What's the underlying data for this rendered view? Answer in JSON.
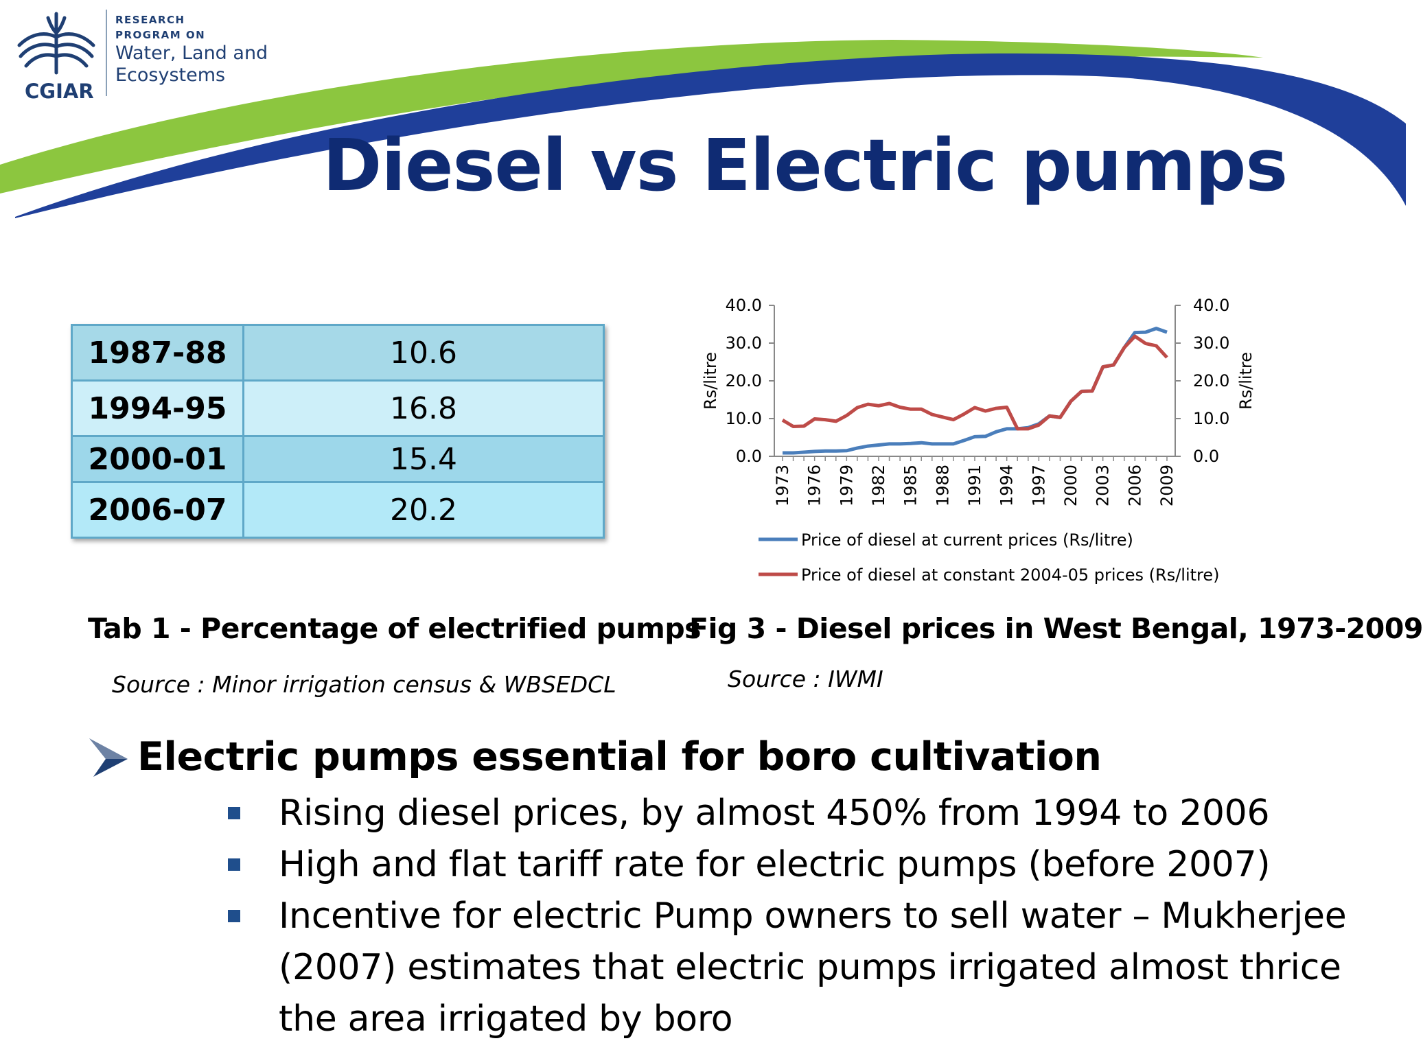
{
  "logo": {
    "org": "CGIAR",
    "line1": "RESEARCH",
    "line2": "PROGRAM ON",
    "line3": "Water, Land and",
    "line4": "Ecosystems",
    "icon": "cgiar-wheat-icon"
  },
  "colors": {
    "title": "#0f2b73",
    "swoosh_green": "#8cc63f",
    "swoosh_blue": "#1f3f9a",
    "series_current": "#4a7ebb",
    "series_constant": "#be4b48",
    "table_border": "#5fa8c8",
    "bullet_square": "#1f4e8c"
  },
  "title": "Diesel vs Electric pumps",
  "table": {
    "rows": [
      {
        "year": "1987-88",
        "value": "10.6"
      },
      {
        "year": "1994-95",
        "value": "16.8"
      },
      {
        "year": "2000-01",
        "value": "15.4"
      },
      {
        "year": "2006-07",
        "value": "20.2"
      }
    ],
    "caption": "Tab 1 - Percentage of electrified pumps",
    "source": "Source : Minor irrigation census & WBSEDCL"
  },
  "figure": {
    "caption": "Fig 3 - Diesel prices in West Bengal, 1973-2009",
    "source": "Source : IWMI"
  },
  "chart_data": {
    "type": "line",
    "title": "",
    "xlabel": "",
    "ylabel": "Rs/litre",
    "ylabel_right": "Rs/litre",
    "ylim": [
      0,
      40
    ],
    "yticks": [
      "0.0",
      "10.0",
      "20.0",
      "30.0",
      "40.0"
    ],
    "x": [
      1973,
      1974,
      1975,
      1976,
      1977,
      1978,
      1979,
      1980,
      1981,
      1982,
      1983,
      1984,
      1985,
      1986,
      1987,
      1988,
      1989,
      1990,
      1991,
      1992,
      1993,
      1994,
      1995,
      1996,
      1997,
      1998,
      1999,
      2000,
      2001,
      2002,
      2003,
      2004,
      2005,
      2006,
      2007,
      2008,
      2009
    ],
    "xtick_labels": [
      "1973",
      "1976",
      "1979",
      "1982",
      "1985",
      "1988",
      "1991",
      "1994",
      "1997",
      "2000",
      "2003",
      "2006",
      "2009"
    ],
    "grid": false,
    "legend": "bottom",
    "series": [
      {
        "name": "Price of diesel at current prices (Rs/litre)",
        "values": [
          0.9,
          0.9,
          1.1,
          1.3,
          1.4,
          1.4,
          1.5,
          2.2,
          2.7,
          3.0,
          3.3,
          3.3,
          3.4,
          3.6,
          3.3,
          3.3,
          3.3,
          4.2,
          5.2,
          5.3,
          6.5,
          7.3,
          7.3,
          7.6,
          8.6,
          10.7,
          10.3,
          14.6,
          17.2,
          17.3,
          23.7,
          24.2,
          28.8,
          32.8,
          32.9,
          33.9,
          32.9
        ]
      },
      {
        "name": "Price of diesel at constant 2004-05 prices (Rs/litre)",
        "values": [
          9.6,
          7.9,
          8.0,
          9.9,
          9.7,
          9.3,
          10.8,
          12.9,
          13.8,
          13.4,
          14.0,
          13.0,
          12.5,
          12.5,
          11.1,
          10.4,
          9.7,
          11.2,
          12.9,
          12.0,
          12.7,
          13.0,
          7.3,
          7.3,
          8.3,
          10.7,
          10.3,
          14.6,
          17.2,
          17.3,
          23.7,
          24.2,
          28.8,
          31.8,
          29.9,
          29.3,
          26.2
        ]
      }
    ]
  },
  "bullets": {
    "main": "Electric pumps essential for boro cultivation",
    "sub": [
      {
        "line1": "Rising diesel prices, by almost 450% from 1994 to 2006"
      },
      {
        "line1": "High and flat tariff rate for electric pumps (before 2007)"
      },
      {
        "line1": "Incentive for electric Pump owners to sell water – Mukherjee",
        "line2": "(2007) estimates that electric pumps irrigated almost thrice",
        "line3": "the area irrigated by boro"
      }
    ]
  }
}
